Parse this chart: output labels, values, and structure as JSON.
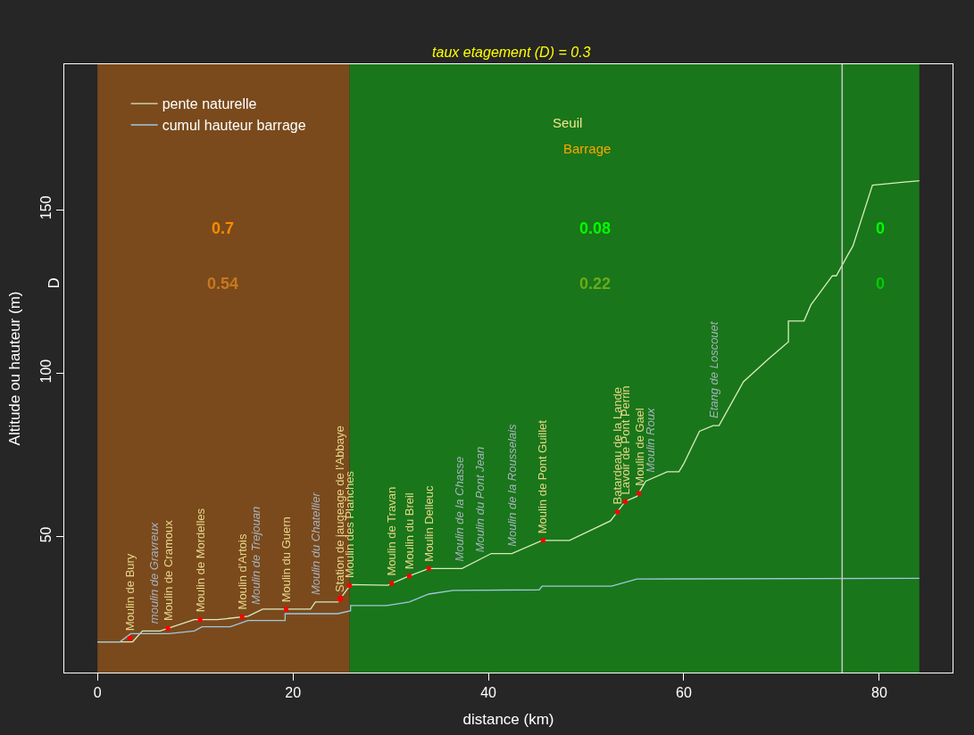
{
  "chart_data": {
    "type": "line",
    "title": "taux etagement (D) = 0.3",
    "xlabel": "distance (km)",
    "ylabel": "Altitude ou hauteur (m)",
    "xlim": [
      -3.4,
      87.5
    ],
    "ylim": [
      8.5,
      194.5
    ],
    "xticks": [
      0,
      20,
      40,
      60,
      80
    ],
    "yticks": [
      50,
      100,
      150
    ],
    "grid": false,
    "legend": "top left",
    "series": [
      {
        "name": "pente naturelle",
        "color": "#d8ecc0",
        "x": [
          0,
          3.6,
          4.6,
          6.4,
          9.9,
          12.3,
          15.4,
          16.9,
          21.8,
          22.3,
          24.6,
          25.9,
          29.7,
          31.8,
          33.9,
          37.3,
          40.3,
          42.4,
          45.5,
          48.3,
          52.5,
          54.0,
          55.2,
          56.1,
          58.3,
          59.5,
          60.0,
          61.6,
          63.0,
          63.6,
          66.1,
          68.6,
          70.7,
          70.7,
          72.3,
          73.0,
          75.2,
          75.6,
          76.8,
          77.3,
          79.3,
          84.1
        ],
        "values": [
          17.9,
          17.9,
          21.2,
          21.2,
          24.7,
          24.7,
          25.7,
          27.9,
          27.9,
          30.1,
          30.1,
          35.4,
          35.2,
          37.9,
          40.3,
          40.3,
          44.9,
          44.9,
          48.9,
          48.9,
          54.9,
          60.8,
          62.4,
          67.0,
          69.9,
          69.9,
          72.4,
          82.3,
          84.0,
          84.0,
          97.4,
          104.2,
          109.6,
          116.0,
          116.0,
          120.9,
          129.8,
          129.8,
          136.3,
          138.9,
          157.5,
          158.9
        ]
      },
      {
        "name": "cumul hauteur barrage",
        "color": "#a0c8e0",
        "x": [
          0,
          2.3,
          3.4,
          7.3,
          9.9,
          10.7,
          13.6,
          15.4,
          19.2,
          19.2,
          24.6,
          25.9,
          25.9,
          29.6,
          31.9,
          33.9,
          36.4,
          45.2,
          45.5,
          52.6,
          55.2,
          84.1
        ],
        "values": [
          17.9,
          17.9,
          20.4,
          20.4,
          21.2,
          22.5,
          22.5,
          24.4,
          24.4,
          26.5,
          26.5,
          27.4,
          29.0,
          29.0,
          30.1,
          32.5,
          33.6,
          33.8,
          34.9,
          34.9,
          37.1,
          37.3
        ]
      },
      {
        "type": "scatter",
        "color": "#ff0000",
        "x": [
          3.3,
          7.2,
          10.5,
          14.8,
          19.3,
          24.8,
          24.9,
          25.8,
          30.1,
          31.9,
          33.9,
          45.6,
          53.2,
          54.0,
          55.4
        ],
        "values": [
          19,
          22.0,
          24.7,
          25.5,
          27.9,
          30.9,
          31.3,
          35.1,
          35.8,
          38.0,
          40.3,
          48.9,
          57.6,
          60.8,
          63.3
        ]
      }
    ],
    "bands": [
      {
        "axis": "x",
        "from": 0,
        "to": 25.8,
        "color": "#7a4a1c"
      },
      {
        "axis": "x",
        "from": 25.8,
        "to": 76.2,
        "color": "#1a761a"
      },
      {
        "axis": "x",
        "from": 76.2,
        "to": 84.1,
        "color": "#1a761a"
      }
    ],
    "ref_lines": [
      {
        "axis": "x",
        "value": 76.2,
        "color": "#c8c8c8"
      }
    ],
    "annotations": [
      {
        "text": "Moulin de Bury",
        "x": 3.3,
        "y": 19
      },
      {
        "text": "moulin de Gravreux",
        "x": 5.8,
        "y": 21.2
      },
      {
        "text": "Moulin de Cramoux",
        "x": 7.2,
        "y": 22.0
      },
      {
        "text": "Moulin de Mordelles",
        "x": 10.5,
        "y": 24.7
      },
      {
        "text": "Moulin d'Artois",
        "x": 14.8,
        "y": 25.5
      },
      {
        "text": "Moulin de Trejouan",
        "x": 16.2,
        "y": 26.9
      },
      {
        "text": "Moulin du Guern",
        "x": 19.3,
        "y": 27.9
      },
      {
        "text": "Moulin du Chatellier",
        "x": 22.3,
        "y": 30.1
      },
      {
        "text": "Station de jaugeage de l'Abbaye",
        "x": 24.8,
        "y": 30.9
      },
      {
        "text": "Moulin des Planches",
        "x": 25.8,
        "y": 35.1
      },
      {
        "text": "Moulin de Travan",
        "x": 30.1,
        "y": 35.8
      },
      {
        "text": "Moulin du Breil",
        "x": 31.9,
        "y": 38.0
      },
      {
        "text": "Moulin Delleuc",
        "x": 33.9,
        "y": 40.3
      },
      {
        "text": "Moulin de la Chasse",
        "x": 37.0,
        "y": 40.3
      },
      {
        "text": "Moulin du Pont Jean",
        "x": 39.1,
        "y": 43.0
      },
      {
        "text": "Moulin de la Rousselais",
        "x": 42.4,
        "y": 44.9
      },
      {
        "text": "Moulin de Pont Guillet",
        "x": 45.6,
        "y": 48.9
      },
      {
        "text": "Batardeau de la Lande",
        "x": 53.2,
        "y": 57.6
      },
      {
        "text": "Lavoir de Pont Perrin",
        "x": 54.0,
        "y": 60.8
      },
      {
        "text": "Moulin de Gael",
        "x": 55.4,
        "y": 63.3
      },
      {
        "text": "Moulin Roux",
        "x": 56.5,
        "y": 67.5
      },
      {
        "text": "Etang de Loscouet",
        "x": 63.0,
        "y": 84.0
      },
      "Seuil",
      "Barrage",
      "D",
      "0.7",
      "0.54",
      "0.08",
      "0.22",
      "0",
      "0"
    ]
  }
}
